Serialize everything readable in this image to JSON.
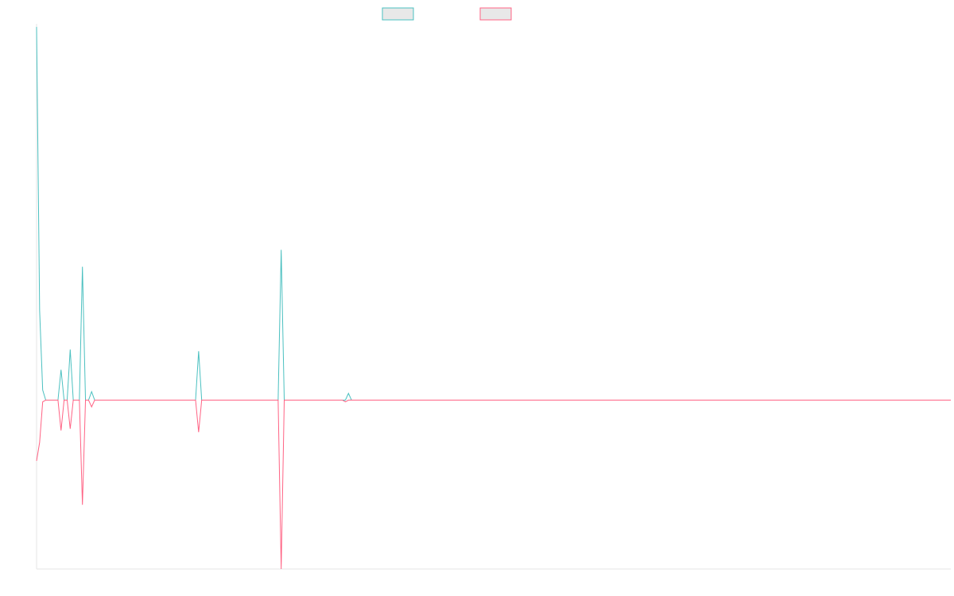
{
  "chart_data": {
    "type": "line",
    "title": "",
    "xlabel": "",
    "ylabel": "",
    "x_count": 300,
    "ylim": [
      -100,
      220
    ],
    "grid": false,
    "legend": {
      "position": "top-center"
    },
    "series": [
      {
        "name": "",
        "color": "#4bc0c0",
        "spikes": [
          [
            0,
            221
          ],
          [
            1,
            53
          ],
          [
            2,
            6
          ],
          [
            3,
            0
          ],
          [
            7,
            0
          ],
          [
            8,
            18
          ],
          [
            9,
            0
          ],
          [
            10,
            0
          ],
          [
            11,
            30
          ],
          [
            12,
            0
          ],
          [
            13,
            0
          ],
          [
            14,
            0
          ],
          [
            15,
            79
          ],
          [
            16,
            0
          ],
          [
            17,
            0
          ],
          [
            18,
            5
          ],
          [
            19,
            0
          ],
          [
            52,
            0
          ],
          [
            53,
            29
          ],
          [
            54,
            0
          ],
          [
            79,
            0
          ],
          [
            80,
            89
          ],
          [
            81,
            0
          ],
          [
            101,
            0
          ],
          [
            102,
            4
          ],
          [
            103,
            0
          ]
        ]
      },
      {
        "name": "",
        "color": "#ff6384",
        "spikes": [
          [
            0,
            -36
          ],
          [
            1,
            -25
          ],
          [
            2,
            -1
          ],
          [
            3,
            0
          ],
          [
            7,
            0
          ],
          [
            8,
            -18
          ],
          [
            9,
            0
          ],
          [
            10,
            0
          ],
          [
            11,
            -17
          ],
          [
            12,
            0
          ],
          [
            13,
            0
          ],
          [
            14,
            0
          ],
          [
            15,
            -62
          ],
          [
            16,
            0
          ],
          [
            17,
            0
          ],
          [
            18,
            -4
          ],
          [
            19,
            0
          ],
          [
            52,
            0
          ],
          [
            53,
            -19
          ],
          [
            54,
            0
          ],
          [
            79,
            0
          ],
          [
            80,
            -100
          ],
          [
            81,
            0
          ],
          [
            100,
            0
          ],
          [
            101,
            -1
          ],
          [
            102,
            0
          ]
        ]
      }
    ]
  }
}
